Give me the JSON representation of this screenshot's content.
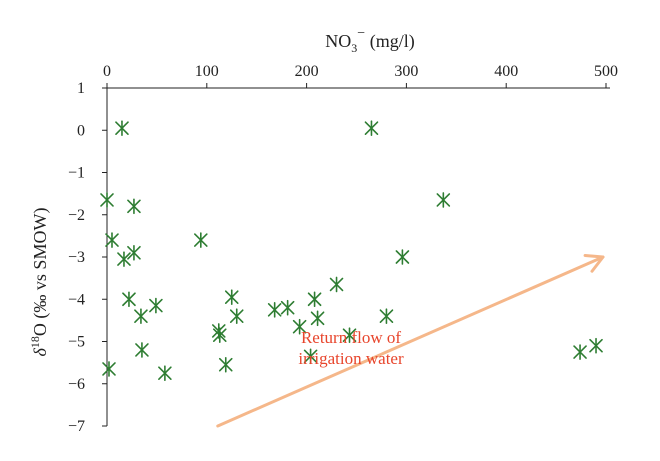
{
  "chart_data": {
    "type": "scatter",
    "title": "",
    "xlabel": {
      "base": "NO",
      "sub": "3",
      "sup": "−",
      "unit": " (mg/l)"
    },
    "ylabel": {
      "delta": "δ",
      "sup": "18",
      "rest": "O (‰ vs SMOW)"
    },
    "x_axis_position": "top",
    "xlim": [
      0,
      500
    ],
    "ylim": [
      -7,
      1
    ],
    "x_ticks": [
      0,
      100,
      200,
      300,
      400,
      500
    ],
    "y_ticks": [
      1,
      0,
      -1,
      -2,
      -3,
      -4,
      -5,
      -6,
      -7
    ],
    "y_tick_labels": [
      "1",
      "0",
      "−1",
      "−2",
      "−3",
      "−4",
      "−5",
      "−6",
      "−7"
    ],
    "grid": false,
    "marker": "asterisk",
    "marker_color": "#2e7d32",
    "points": [
      {
        "x": 15,
        "y": 0.05
      },
      {
        "x": 265,
        "y": 0.05
      },
      {
        "x": 0,
        "y": -1.65
      },
      {
        "x": 27,
        "y": -1.8
      },
      {
        "x": 337,
        "y": -1.65
      },
      {
        "x": 5,
        "y": -2.6
      },
      {
        "x": 27,
        "y": -2.9
      },
      {
        "x": 17,
        "y": -3.05
      },
      {
        "x": 94,
        "y": -2.6
      },
      {
        "x": 296,
        "y": -3.0
      },
      {
        "x": 22,
        "y": -4.0
      },
      {
        "x": 49,
        "y": -4.15
      },
      {
        "x": 34,
        "y": -4.4
      },
      {
        "x": 35,
        "y": -5.2
      },
      {
        "x": 2,
        "y": -5.65
      },
      {
        "x": 58,
        "y": -5.75
      },
      {
        "x": 112,
        "y": -4.75
      },
      {
        "x": 113,
        "y": -4.85
      },
      {
        "x": 119,
        "y": -5.55
      },
      {
        "x": 125,
        "y": -3.95
      },
      {
        "x": 130,
        "y": -4.4
      },
      {
        "x": 168,
        "y": -4.25
      },
      {
        "x": 181,
        "y": -4.2
      },
      {
        "x": 193,
        "y": -4.65
      },
      {
        "x": 208,
        "y": -4.0
      },
      {
        "x": 211,
        "y": -4.45
      },
      {
        "x": 204,
        "y": -5.35
      },
      {
        "x": 230,
        "y": -3.65
      },
      {
        "x": 243,
        "y": -4.85
      },
      {
        "x": 280,
        "y": -4.4
      },
      {
        "x": 474,
        "y": -5.25
      },
      {
        "x": 490,
        "y": -5.1
      }
    ],
    "annotation": {
      "text_line1": "Return flow of",
      "text_line2": "irrigation water",
      "text_color": "#e8452c",
      "arrow_color": "#f5b78a",
      "arrow_from": {
        "x": 111,
        "y": -7.0
      },
      "arrow_to": {
        "x": 497,
        "y": -3.0
      }
    }
  }
}
